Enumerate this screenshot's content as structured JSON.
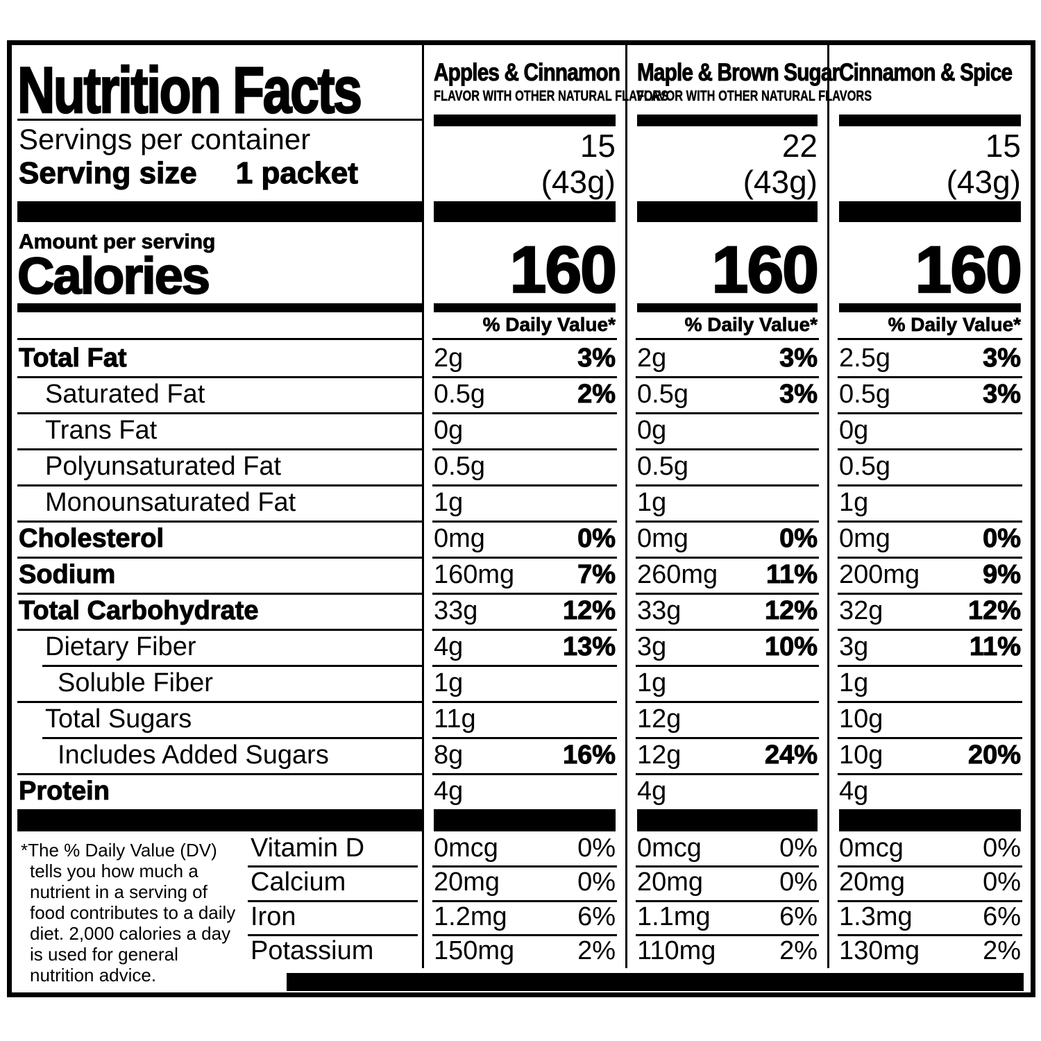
{
  "header": {
    "title": "Nutrition Facts",
    "servings_label": "Servings per container",
    "serving_size_label": "Serving size",
    "serving_size_value": "1 packet",
    "amount_label": "Amount per serving",
    "calories_label": "Calories",
    "dv_header": "% Daily Value*"
  },
  "columns": [
    {
      "flavor": "Apples & Cinnamon",
      "subtitle": "FLAVOR WITH OTHER NATURAL FLAVORS",
      "servings": "15",
      "serving_weight": "(43g)",
      "calories": "160"
    },
    {
      "flavor": "Maple & Brown Sugar",
      "subtitle": "FLAVOR WITH OTHER NATURAL FLAVORS",
      "servings": "22",
      "serving_weight": "(43g)",
      "calories": "160"
    },
    {
      "flavor": "Cinnamon & Spice",
      "subtitle": "",
      "servings": "15",
      "serving_weight": "(43g)",
      "calories": "160"
    }
  ],
  "nutrients": [
    {
      "label": "Total Fat",
      "bold": true,
      "indent": 0,
      "values": [
        {
          "amount": "2g",
          "dv": "3%"
        },
        {
          "amount": "2g",
          "dv": "3%"
        },
        {
          "amount": "2.5g",
          "dv": "3%"
        }
      ]
    },
    {
      "label": "Saturated Fat",
      "bold": false,
      "indent": 1,
      "values": [
        {
          "amount": "0.5g",
          "dv": "2%"
        },
        {
          "amount": "0.5g",
          "dv": "3%"
        },
        {
          "amount": "0.5g",
          "dv": "3%"
        }
      ]
    },
    {
      "label": "Trans Fat",
      "bold": false,
      "indent": 1,
      "values": [
        {
          "amount": "0g",
          "dv": ""
        },
        {
          "amount": "0g",
          "dv": ""
        },
        {
          "amount": "0g",
          "dv": ""
        }
      ]
    },
    {
      "label": "Polyunsaturated Fat",
      "bold": false,
      "indent": 1,
      "values": [
        {
          "amount": "0.5g",
          "dv": ""
        },
        {
          "amount": "0.5g",
          "dv": ""
        },
        {
          "amount": "0.5g",
          "dv": ""
        }
      ]
    },
    {
      "label": "Monounsaturated Fat",
      "bold": false,
      "indent": 1,
      "values": [
        {
          "amount": "1g",
          "dv": ""
        },
        {
          "amount": "1g",
          "dv": ""
        },
        {
          "amount": "1g",
          "dv": ""
        }
      ]
    },
    {
      "label": "Cholesterol",
      "bold": true,
      "indent": 0,
      "values": [
        {
          "amount": "0mg",
          "dv": "0%"
        },
        {
          "amount": "0mg",
          "dv": "0%"
        },
        {
          "amount": "0mg",
          "dv": "0%"
        }
      ]
    },
    {
      "label": "Sodium",
      "bold": true,
      "indent": 0,
      "values": [
        {
          "amount": "160mg",
          "dv": "7%"
        },
        {
          "amount": "260mg",
          "dv": "11%"
        },
        {
          "amount": "200mg",
          "dv": "9%"
        }
      ]
    },
    {
      "label": "Total Carbohydrate",
      "bold": true,
      "indent": 0,
      "values": [
        {
          "amount": "33g",
          "dv": "12%"
        },
        {
          "amount": "33g",
          "dv": "12%"
        },
        {
          "amount": "32g",
          "dv": "12%"
        }
      ]
    },
    {
      "label": "Dietary Fiber",
      "bold": false,
      "indent": 1,
      "values": [
        {
          "amount": "4g",
          "dv": "13%"
        },
        {
          "amount": "3g",
          "dv": "10%"
        },
        {
          "amount": "3g",
          "dv": "11%"
        }
      ]
    },
    {
      "label": "Soluble Fiber",
      "bold": false,
      "indent": 2,
      "sep_indent": true,
      "values": [
        {
          "amount": "1g",
          "dv": ""
        },
        {
          "amount": "1g",
          "dv": ""
        },
        {
          "amount": "1g",
          "dv": ""
        }
      ]
    },
    {
      "label": "Total Sugars",
      "bold": false,
      "indent": 1,
      "values": [
        {
          "amount": "11g",
          "dv": ""
        },
        {
          "amount": "12g",
          "dv": ""
        },
        {
          "amount": "10g",
          "dv": ""
        }
      ]
    },
    {
      "label": "Includes Added Sugars",
      "bold": false,
      "indent": 2,
      "sep_indent": true,
      "values": [
        {
          "amount": "8g",
          "dv": "16%"
        },
        {
          "amount": "12g",
          "dv": "24%"
        },
        {
          "amount": "10g",
          "dv": "20%"
        }
      ]
    },
    {
      "label": "Protein",
      "bold": true,
      "indent": 0,
      "values": [
        {
          "amount": "4g",
          "dv": ""
        },
        {
          "amount": "4g",
          "dv": ""
        },
        {
          "amount": "4g",
          "dv": ""
        }
      ]
    }
  ],
  "vitamins": [
    {
      "label": "Vitamin D",
      "values": [
        {
          "amount": "0mcg",
          "dv": "0%"
        },
        {
          "amount": "0mcg",
          "dv": "0%"
        },
        {
          "amount": "0mcg",
          "dv": "0%"
        }
      ]
    },
    {
      "label": "Calcium",
      "values": [
        {
          "amount": "20mg",
          "dv": "0%"
        },
        {
          "amount": "20mg",
          "dv": "0%"
        },
        {
          "amount": "20mg",
          "dv": "0%"
        }
      ]
    },
    {
      "label": "Iron",
      "values": [
        {
          "amount": "1.2mg",
          "dv": "6%"
        },
        {
          "amount": "1.1mg",
          "dv": "6%"
        },
        {
          "amount": "1.3mg",
          "dv": "6%"
        }
      ]
    },
    {
      "label": "Potassium",
      "values": [
        {
          "amount": "150mg",
          "dv": "2%"
        },
        {
          "amount": "110mg",
          "dv": "2%"
        },
        {
          "amount": "130mg",
          "dv": "2%"
        }
      ]
    }
  ],
  "footnote": "*The % Daily Value (DV) tells you how much a nutrient in a serving of food contributes to a daily diet. 2,000 calories a day is used for general nutrition advice.",
  "colors": {
    "ink": "#000000",
    "paper": "#ffffff"
  }
}
